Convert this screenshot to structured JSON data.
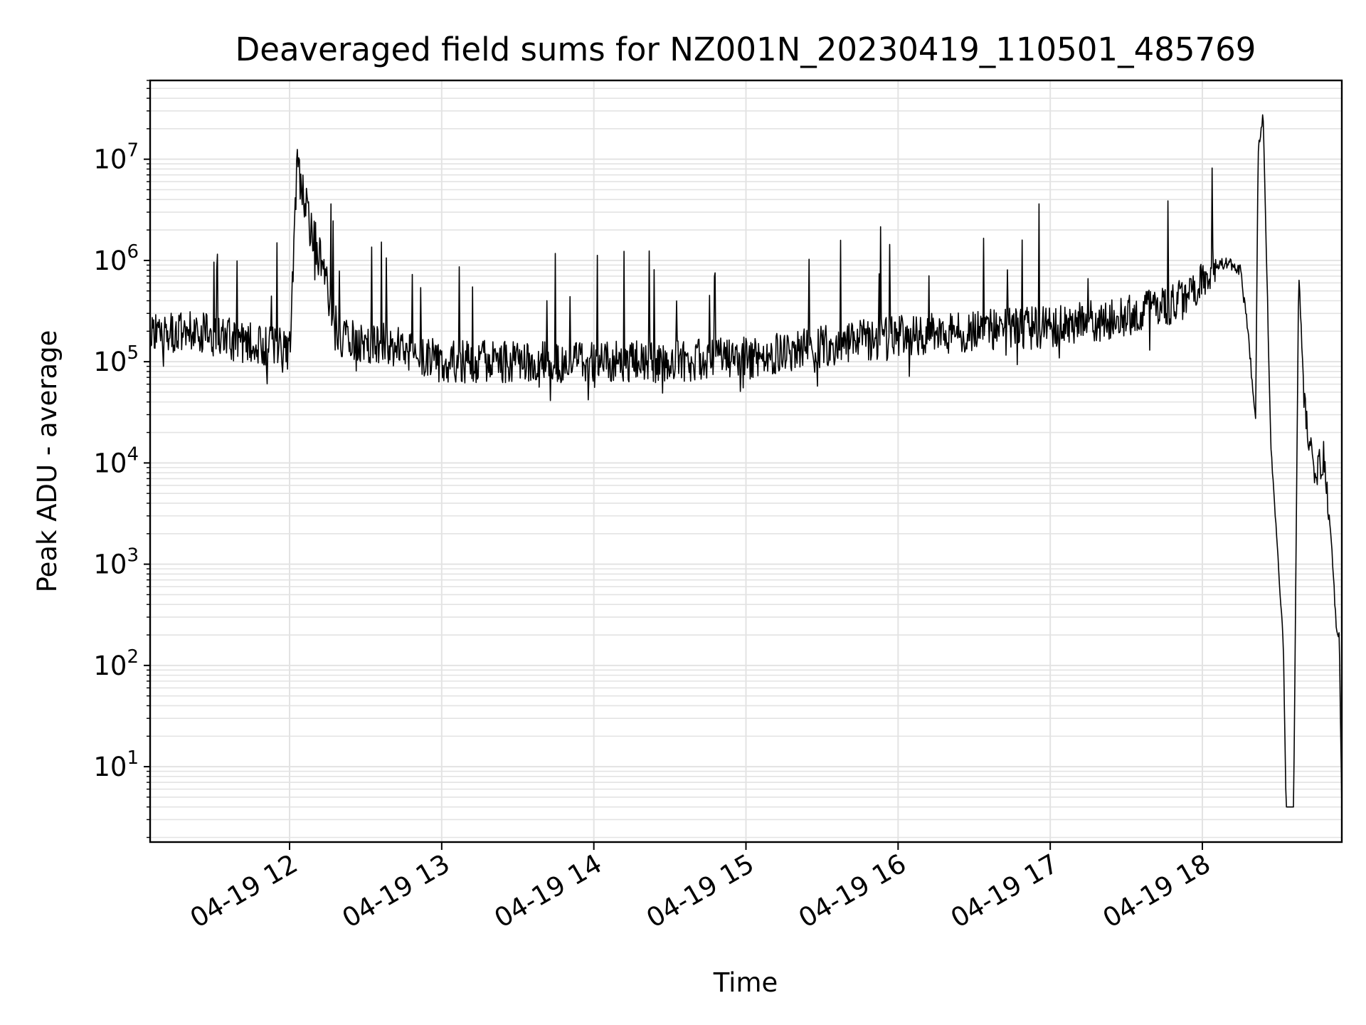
{
  "chart_data": {
    "type": "line",
    "title": "Deaveraged field sums for NZ001N_20230419_110501_485769",
    "xlabel": "Time",
    "ylabel": "Peak ADU - average",
    "y_scale": "log",
    "ylim": [
      1.8,
      60000000
    ],
    "xlim": [
      "2023-04-19 11:05",
      "2023-04-19 18:55"
    ],
    "grid": true,
    "grid_color": "#e3e3e3",
    "line_color": "#000000",
    "x_tick_labels": [
      "04-19 12",
      "04-19 13",
      "04-19 14",
      "04-19 15",
      "04-19 16",
      "04-19 17",
      "04-19 18"
    ],
    "y_tick_labels": [
      {
        "base": "10",
        "exp": "1"
      },
      {
        "base": "10",
        "exp": "2"
      },
      {
        "base": "10",
        "exp": "3"
      },
      {
        "base": "10",
        "exp": "4"
      },
      {
        "base": "10",
        "exp": "5"
      },
      {
        "base": "10",
        "exp": "6"
      },
      {
        "base": "10",
        "exp": "7"
      }
    ],
    "series": [
      {
        "x": [
          "2023-04-19 11:05",
          "2023-04-19 11:20",
          "2023-04-19 11:40",
          "2023-04-19 12:00",
          "2023-04-19 12:03",
          "2023-04-19 12:20",
          "2023-04-19 12:40",
          "2023-04-19 13:00",
          "2023-04-19 13:30",
          "2023-04-19 14:00",
          "2023-04-19 14:30",
          "2023-04-19 15:00",
          "2023-04-19 15:30",
          "2023-04-19 16:00",
          "2023-04-19 16:30",
          "2023-04-19 17:00",
          "2023-04-19 17:30",
          "2023-04-19 17:50",
          "2023-04-19 18:00",
          "2023-04-19 18:05",
          "2023-04-19 18:10",
          "2023-04-19 18:15",
          "2023-04-19 18:18",
          "2023-04-19 18:21",
          "2023-04-19 18:22",
          "2023-04-19 18:24",
          "2023-04-19 18:27",
          "2023-04-19 18:30",
          "2023-04-19 18:32",
          "2023-04-19 18:33",
          "2023-04-19 18:34",
          "2023-04-19 18:36",
          "2023-04-19 18:38",
          "2023-04-19 18:40",
          "2023-04-19 18:42",
          "2023-04-19 18:45",
          "2023-04-19 18:48",
          "2023-04-19 18:51",
          "2023-04-19 18:53",
          "2023-04-19 18:54",
          "2023-04-19 18:55"
        ],
        "y": [
          180000,
          200000,
          160000,
          130000,
          8000000,
          160000,
          150000,
          100000,
          100000,
          100000,
          100000,
          110000,
          140000,
          180000,
          200000,
          220000,
          280000,
          380000,
          600000,
          900000,
          950000,
          800000,
          200000,
          25000,
          12000000,
          28000000,
          15000,
          1000,
          150,
          4,
          4,
          4,
          800000,
          50000,
          15000,
          8000,
          12000,
          1500,
          200,
          200,
          4
        ]
      }
    ]
  }
}
